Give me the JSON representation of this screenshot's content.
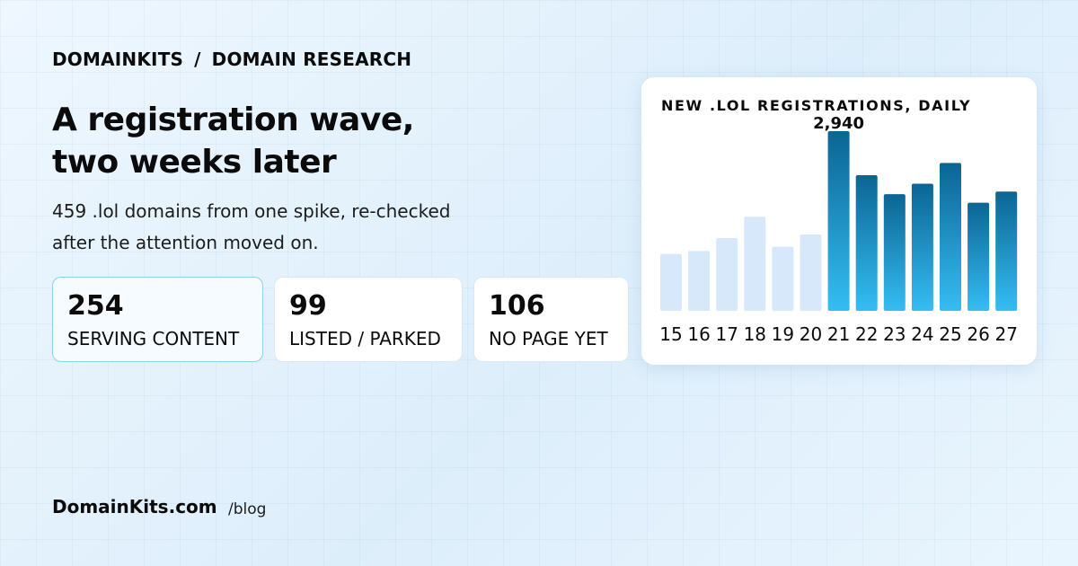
{
  "breadcrumb": {
    "site": "DOMAINKITS",
    "separator": "/",
    "section": "DOMAIN RESEARCH"
  },
  "headline": {
    "line1": "A registration wave,",
    "line2": "two weeks later"
  },
  "subtitle": {
    "line1": "459 .lol domains from one spike, re-checked",
    "line2": "after the attention moved on."
  },
  "stats": [
    {
      "value": "254",
      "label": "SERVING CONTENT"
    },
    {
      "value": "99",
      "label": "LISTED / PARKED"
    },
    {
      "value": "106",
      "label": "NO PAGE YET"
    }
  ],
  "footer": {
    "brand": "DomainKits.com",
    "path": "/blog"
  },
  "chart_data": {
    "type": "bar",
    "title": "NEW .LOL REGISTRATIONS, DAILY",
    "categories": [
      "15",
      "16",
      "17",
      "18",
      "19",
      "20",
      "21",
      "22",
      "23",
      "24",
      "25",
      "26",
      "27"
    ],
    "values": [
      930,
      980,
      1190,
      1540,
      1050,
      1250,
      2940,
      2220,
      1910,
      2080,
      2420,
      1770,
      1950
    ],
    "highlight_from_index": 6,
    "data_labels": [
      {
        "index": 6,
        "text": "2,940"
      }
    ],
    "ylim": [
      0,
      2940
    ],
    "grid": false,
    "colors": {
      "before": "#d8e8fb",
      "after_top": "#0b6593",
      "after_bottom": "#35bdf3"
    }
  }
}
